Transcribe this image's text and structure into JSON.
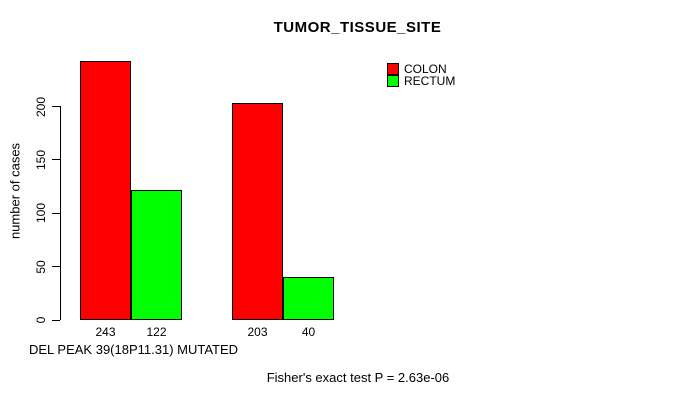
{
  "chart_data": {
    "type": "bar",
    "title": "TUMOR_TISSUE_SITE",
    "ylabel": "number of cases",
    "xlabel": "DEL PEAK 39(18P11.31) MUTATED",
    "annotation": "Fisher's exact test P = 2.63e-06",
    "yticks": [
      0,
      50,
      100,
      150,
      200
    ],
    "ylim": [
      0,
      250
    ],
    "grid": false,
    "legend_position": "top-right",
    "series": [
      {
        "name": "COLON",
        "color": "#ff0000",
        "values": [
          243,
          203
        ]
      },
      {
        "name": "RECTUM",
        "color": "#00ff00",
        "values": [
          122,
          40
        ]
      }
    ],
    "bar_value_labels": [
      [
        "243",
        "203"
      ],
      [
        "122",
        "40"
      ]
    ]
  },
  "colors": {
    "bar_border": "#000000",
    "axis": "#000000",
    "text": "#000000",
    "background": "#ffffff"
  }
}
